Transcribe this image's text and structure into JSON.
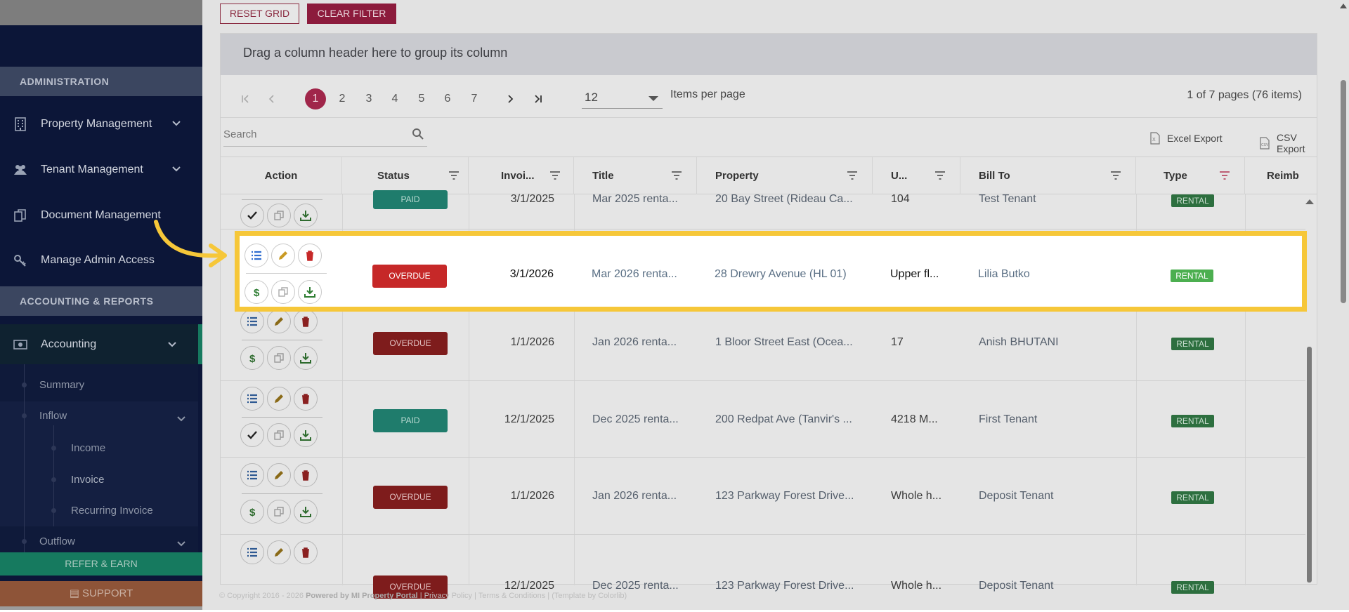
{
  "sidebar": {
    "sections": {
      "administration": "ADMINISTRATION",
      "accounting_reports": "ACCOUNTING & REPORTS"
    },
    "items": [
      {
        "label": "Property Management",
        "icon": "building-icon"
      },
      {
        "label": "Tenant Management",
        "icon": "users-icon"
      },
      {
        "label": "Document Management",
        "icon": "documents-icon"
      },
      {
        "label": "Manage Admin Access",
        "icon": "key-icon"
      },
      {
        "label": "Accounting",
        "icon": "money-icon"
      }
    ],
    "sub": {
      "summary": "Summary",
      "inflow": "Inflow",
      "income": "Income",
      "invoice": "Invoice",
      "recurring": "Recurring Invoice",
      "outflow": "Outflow"
    },
    "refer": "REFER & EARN",
    "support": "SUPPORT"
  },
  "toolbar": {
    "reset": "RESET GRID",
    "clear": "CLEAR FILTER"
  },
  "grid": {
    "group_hint": "Drag a column header here to group its column",
    "pages": [
      "1",
      "2",
      "3",
      "4",
      "5",
      "6",
      "7"
    ],
    "per_page": "12",
    "per_page_label": "Items per page",
    "page_info": "1 of 7 pages (76 items)",
    "search_placeholder": "Search",
    "excel": "Excel Export",
    "csv": "CSV Export",
    "columns": {
      "action": "Action",
      "status": "Status",
      "invoice": "Invoi...",
      "title": "Title",
      "property": "Property",
      "unit": "U...",
      "bill_to": "Bill To",
      "type": "Type",
      "reimb": "Reimb"
    },
    "rows": [
      {
        "status": "PAID",
        "date": "3/1/2025",
        "title": "Mar 2025 renta...",
        "property": "20 Bay Street (Rideau Ca...",
        "unit": "104",
        "bill_to": "Test Tenant",
        "type": "RENTAL"
      },
      {
        "status": "OVERDUE",
        "date": "3/1/2026",
        "title": "Mar 2026 renta...",
        "property": "28 Drewry Avenue (HL 01)",
        "unit": "Upper fl...",
        "bill_to": "Lilia Butko",
        "type": "RENTAL"
      },
      {
        "status": "OVERDUE",
        "date": "1/1/2026",
        "title": "Jan 2026 renta...",
        "property": "1 Bloor Street East (Ocea...",
        "unit": "17",
        "bill_to": "Anish BHUTANI",
        "type": "RENTAL"
      },
      {
        "status": "PAID",
        "date": "12/1/2025",
        "title": "Dec 2025 renta...",
        "property": "200 Redpat Ave (Tanvir's ...",
        "unit": "4218 M...",
        "bill_to": "First Tenant",
        "type": "RENTAL"
      },
      {
        "status": "OVERDUE",
        "date": "1/1/2026",
        "title": "Jan 2026 renta...",
        "property": "123 Parkway Forest Drive...",
        "unit": "Whole h...",
        "bill_to": "Deposit Tenant",
        "type": "RENTAL"
      },
      {
        "status": "OVERDUE",
        "date": "12/1/2025",
        "title": "Dec 2025 renta...",
        "property": "123 Parkway Forest Drive...",
        "unit": "Whole h...",
        "bill_to": "Deposit Tenant",
        "type": "RENTAL"
      }
    ]
  },
  "footer": {
    "copyright": "© Copyright 2016 - 2026",
    "powered": "Powered by MI Property Portal",
    "links": "| Privacy Policy | Terms & Conditions |",
    "template": "(Template by Colorlib)"
  },
  "colors": {
    "accent": "#c2185b",
    "paid": "#26a69a",
    "overdue": "#c62828",
    "rental": "#4caf50",
    "highlight": "#f6c739"
  }
}
